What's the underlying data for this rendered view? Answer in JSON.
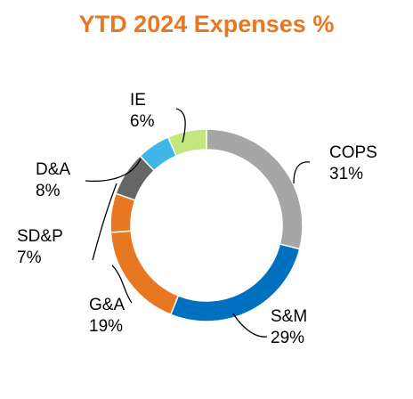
{
  "chart_data": {
    "type": "pie",
    "donut": true,
    "title": "YTD 2024 Expenses %",
    "start_angle_deg": 0,
    "direction": "clockwise",
    "slices": [
      {
        "name": "COPS",
        "value": 31,
        "label": "31%",
        "color": "#A6A6A6"
      },
      {
        "name": "S&M",
        "value": 29,
        "label": "29%",
        "color": "#0070C0"
      },
      {
        "name": "G&A",
        "value": 19,
        "label": "19%",
        "color": "#E87722"
      },
      {
        "name": "SD&P",
        "value": 7,
        "label": "7%",
        "color": "#E87722"
      },
      {
        "name": "D&A",
        "value": 8,
        "label": "8%",
        "color": "#666666"
      },
      {
        "name": "IE",
        "value": 6,
        "label": "6%",
        "color": "#41B6E6"
      },
      {
        "name": "",
        "value": 7,
        "label": "",
        "color": "#C2E77E"
      }
    ],
    "legend": "none"
  },
  "colors": {
    "title": "#E87722",
    "leader_line": "#000000",
    "slice_border": "#FFFFFF"
  }
}
